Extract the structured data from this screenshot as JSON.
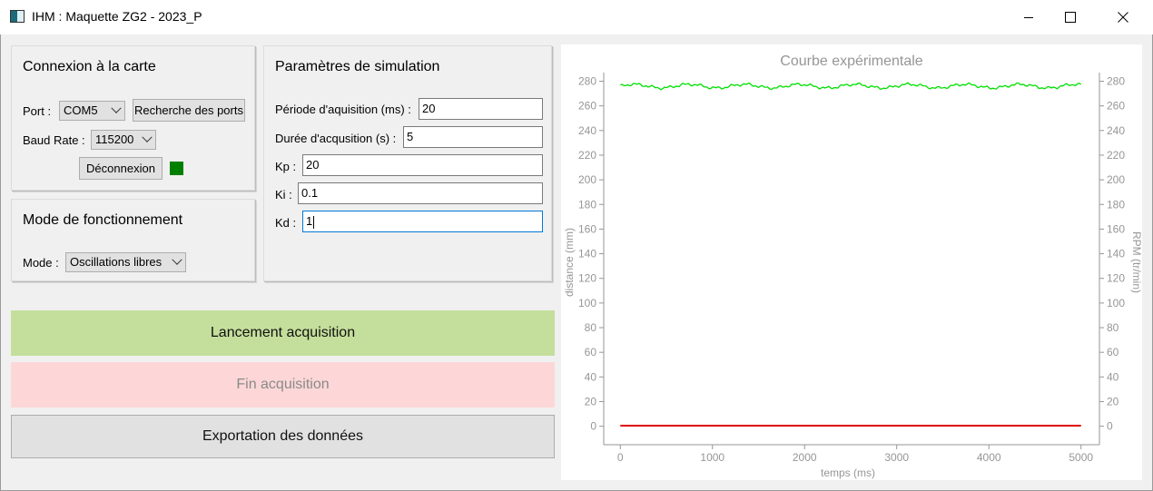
{
  "window": {
    "title": "IHM : Maquette ZG2 - 2023_P"
  },
  "connection": {
    "title": "Connexion à la carte",
    "port_label": "Port :",
    "port_value": "COM5",
    "search_label": "Recherche des ports",
    "baud_label": "Baud Rate :",
    "baud_value": "115200",
    "disconnect_label": "Déconnexion",
    "status_color": "#008000"
  },
  "mode": {
    "title": "Mode de fonctionnement",
    "mode_label": "Mode :",
    "mode_value": "Oscillations libres"
  },
  "simulation": {
    "title": "Paramètres de simulation",
    "period_label": "Période d'aquisition (ms) :",
    "period_value": "20",
    "duration_label": "Durée d'acqusition (s) :",
    "duration_value": "5",
    "kp_label": "Kp :",
    "kp_value": "20",
    "ki_label": "Ki :",
    "ki_value": "0.1",
    "kd_label": "Kd :",
    "kd_value": "1"
  },
  "actions": {
    "start_label": "Lancement acquisition",
    "start_color": "#c4df9b",
    "stop_label": "Fin acquisition",
    "stop_color": "#fdd7d7",
    "export_label": "Exportation des données"
  },
  "chart_data": {
    "type": "line",
    "title": "Courbe expérimentale",
    "xlabel": "temps (ms)",
    "ylabel": "distance (mm)",
    "y2label": "RPM (tr/min)",
    "xlim": [
      -180,
      5200
    ],
    "ylim": [
      -15,
      287
    ],
    "x_ticks": [
      0,
      1000,
      2000,
      3000,
      4000,
      5000
    ],
    "y_ticks": [
      0,
      20,
      40,
      60,
      80,
      100,
      120,
      140,
      160,
      180,
      200,
      220,
      240,
      260,
      280
    ],
    "grid": false,
    "series": [
      {
        "color": "#00e000",
        "axis": "right",
        "x_range": [
          0,
          5000
        ],
        "mean": 276,
        "amplitude": 2.5
      },
      {
        "color": "#e00000",
        "axis": "left",
        "x_range": [
          0,
          5000
        ],
        "mean": 0.5,
        "amplitude": 0
      }
    ]
  }
}
